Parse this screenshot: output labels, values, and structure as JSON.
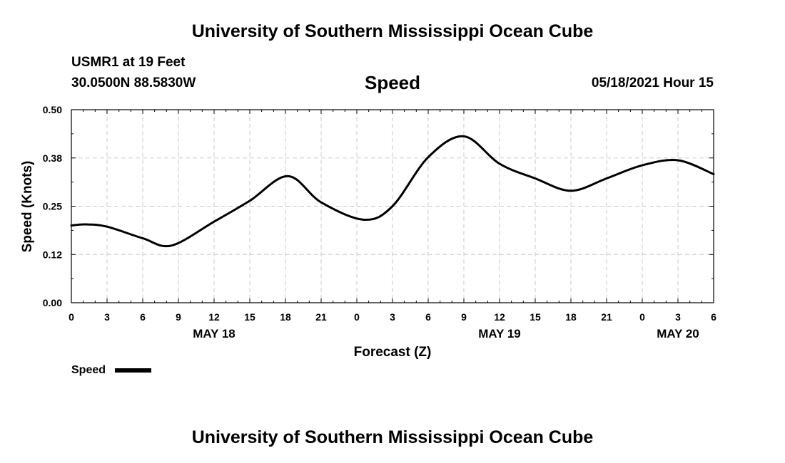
{
  "page": {
    "header_title": "University of Southern Mississippi Ocean Cube",
    "footer_title": "University of Southern Mississippi Ocean Cube",
    "station_line": "USMR1 at 19 Feet",
    "coords_line": "30.0500N  88.5830W",
    "issued": "05/18/2021 Hour 15"
  },
  "chart_data": {
    "type": "line",
    "title": "Speed",
    "xlabel": "Forecast (Z)",
    "ylabel": "Speed (Knots)",
    "ylim": [
      0,
      0.5
    ],
    "yticks": [
      0.0,
      0.125,
      0.25,
      0.375,
      0.5
    ],
    "ytick_labels": [
      "0.00",
      "0.12",
      "0.25",
      "0.38",
      "0.50"
    ],
    "x_unit": "hours from May 18 00Z",
    "xlim": [
      0,
      54
    ],
    "xticks": [
      0,
      3,
      6,
      9,
      12,
      15,
      18,
      21,
      24,
      27,
      30,
      33,
      36,
      39,
      42,
      45,
      48,
      51,
      54
    ],
    "xtick_labels": [
      "0",
      "3",
      "6",
      "9",
      "12",
      "15",
      "18",
      "21",
      "0",
      "3",
      "6",
      "9",
      "12",
      "15",
      "18",
      "21",
      "0",
      "3",
      "6"
    ],
    "date_labels": [
      {
        "x": 12,
        "label": "MAY 18"
      },
      {
        "x": 36,
        "label": "MAY 19"
      },
      {
        "x": 51,
        "label": "MAY 20"
      }
    ],
    "grid": true,
    "legend": "bottom-left",
    "series": [
      {
        "name": "Speed",
        "color": "#000000",
        "x": [
          0,
          1.2,
          3,
          6,
          8.4,
          12,
          15,
          18.2,
          21,
          24.6,
          27,
          30,
          33,
          36,
          39,
          42,
          45,
          48,
          51,
          54
        ],
        "values": [
          0.2,
          0.203,
          0.197,
          0.167,
          0.148,
          0.21,
          0.264,
          0.328,
          0.26,
          0.215,
          0.25,
          0.377,
          0.431,
          0.36,
          0.322,
          0.29,
          0.322,
          0.356,
          0.369,
          0.333
        ]
      }
    ]
  }
}
